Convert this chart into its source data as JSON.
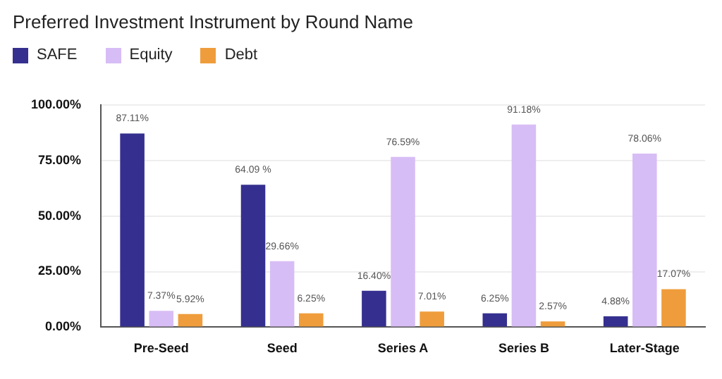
{
  "chart_data": {
    "type": "bar",
    "title": "Preferred Investment Instrument by Round Name",
    "categories": [
      "Pre-Seed",
      "Seed",
      "Series A",
      "Series B",
      "Later-Stage"
    ],
    "series": [
      {
        "name": "SAFE",
        "color": "#35308f",
        "values": [
          87.11,
          64.09,
          16.4,
          6.25,
          4.88
        ],
        "value_labels": [
          "87.11%",
          "64.09 %",
          "16.40%",
          "6.25%",
          "4.88%"
        ]
      },
      {
        "name": "Equity",
        "color": "#d7bdf5",
        "values": [
          7.37,
          29.66,
          76.59,
          91.18,
          78.06
        ],
        "value_labels": [
          "7.37%",
          "29.66%",
          "76.59%",
          "91.18%",
          "78.06%"
        ]
      },
      {
        "name": "Debt",
        "color": "#ef9d3c",
        "values": [
          5.92,
          6.25,
          7.01,
          2.57,
          17.07
        ],
        "value_labels": [
          "5.92%",
          "6.25%",
          "7.01%",
          "2.57%",
          "17.07%"
        ]
      }
    ],
    "ylim": [
      0,
      100
    ],
    "yticks": [
      {
        "value": 0,
        "label": "0.00%"
      },
      {
        "value": 25,
        "label": "25.00%"
      },
      {
        "value": 50,
        "label": "50.00%"
      },
      {
        "value": 75,
        "label": "75.00%"
      },
      {
        "value": 100,
        "label": "100.00%"
      }
    ],
    "grid": "y",
    "legend": "top left"
  }
}
